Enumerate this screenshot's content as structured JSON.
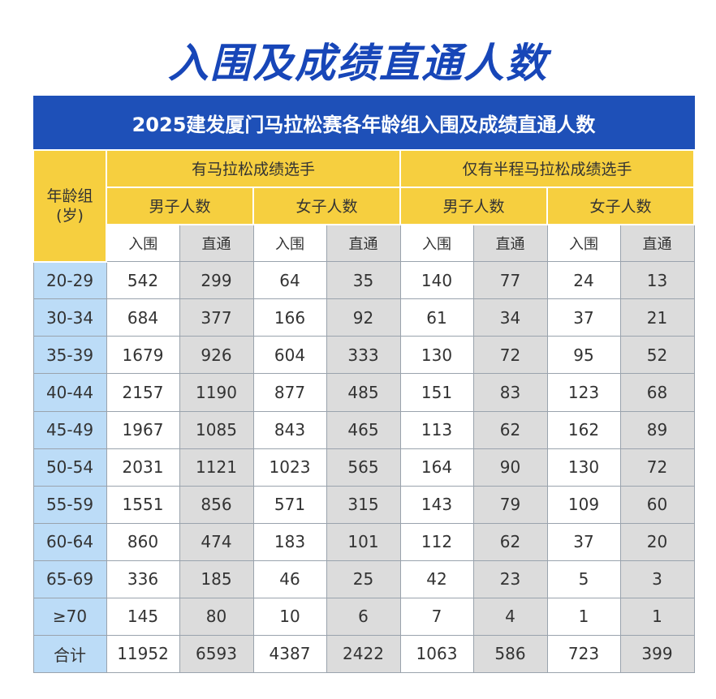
{
  "page_title": "入围及成绩直通人数",
  "table": {
    "banner": "2025建发厦门马拉松赛各年龄组入围及成绩直通人数",
    "age_header": "年龄组\n(岁)",
    "groups": [
      "有马拉松成绩选手",
      "仅有半程马拉松成绩选手"
    ],
    "genders": [
      "男子人数",
      "女子人数",
      "男子人数",
      "女子人数"
    ],
    "subheaders": [
      "入围",
      "直通",
      "入围",
      "直通",
      "入围",
      "直通",
      "入围",
      "直通"
    ],
    "rows": [
      {
        "age": "20-29",
        "values": [
          "542",
          "299",
          "64",
          "35",
          "140",
          "77",
          "24",
          "13"
        ]
      },
      {
        "age": "30-34",
        "values": [
          "684",
          "377",
          "166",
          "92",
          "61",
          "34",
          "37",
          "21"
        ]
      },
      {
        "age": "35-39",
        "values": [
          "1679",
          "926",
          "604",
          "333",
          "130",
          "72",
          "95",
          "52"
        ]
      },
      {
        "age": "40-44",
        "values": [
          "2157",
          "1190",
          "877",
          "485",
          "151",
          "83",
          "123",
          "68"
        ]
      },
      {
        "age": "45-49",
        "values": [
          "1967",
          "1085",
          "843",
          "465",
          "113",
          "62",
          "162",
          "89"
        ]
      },
      {
        "age": "50-54",
        "values": [
          "2031",
          "1121",
          "1023",
          "565",
          "164",
          "90",
          "130",
          "72"
        ]
      },
      {
        "age": "55-59",
        "values": [
          "1551",
          "856",
          "571",
          "315",
          "143",
          "79",
          "109",
          "60"
        ]
      },
      {
        "age": "60-64",
        "values": [
          "860",
          "474",
          "183",
          "101",
          "112",
          "62",
          "37",
          "20"
        ]
      },
      {
        "age": "65-69",
        "values": [
          "336",
          "185",
          "46",
          "25",
          "42",
          "23",
          "5",
          "3"
        ]
      },
      {
        "age": "≥70",
        "values": [
          "145",
          "80",
          "10",
          "6",
          "7",
          "4",
          "1",
          "1"
        ]
      }
    ],
    "total": {
      "age": "合计",
      "values": [
        "11952",
        "6593",
        "4387",
        "2422",
        "1063",
        "586",
        "723",
        "399"
      ]
    }
  }
}
